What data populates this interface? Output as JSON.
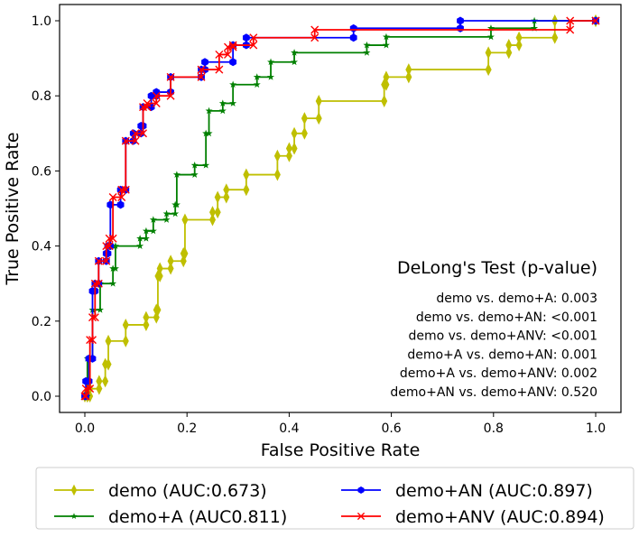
{
  "chart_data": {
    "type": "line",
    "xlabel": "False Positive Rate",
    "ylabel": "True Positive Rate",
    "xlim": [
      -0.05,
      1.05
    ],
    "ylim": [
      -0.05,
      1.04
    ],
    "xticks": [
      "0.0",
      "0.2",
      "0.4",
      "0.6",
      "0.8",
      "1.0"
    ],
    "yticks": [
      "0.0",
      "0.2",
      "0.4",
      "0.6",
      "0.8",
      "1.0"
    ],
    "grid": false,
    "legend_placement": "bottom-outside",
    "series": [
      {
        "name": "demo (AUC:0.673)",
        "color": "#bfbf00",
        "marker": "diamond",
        "points": [
          [
            0,
            0
          ],
          [
            0.005,
            0
          ],
          [
            0.01,
            0.02
          ],
          [
            0.028,
            0.04
          ],
          [
            0.04,
            0.085
          ],
          [
            0.046,
            0.147
          ],
          [
            0.08,
            0.19
          ],
          [
            0.12,
            0.21
          ],
          [
            0.14,
            0.23
          ],
          [
            0.143,
            0.32
          ],
          [
            0.147,
            0.34
          ],
          [
            0.168,
            0.36
          ],
          [
            0.193,
            0.38
          ],
          [
            0.196,
            0.47
          ],
          [
            0.25,
            0.49
          ],
          [
            0.26,
            0.53
          ],
          [
            0.277,
            0.55
          ],
          [
            0.316,
            0.59
          ],
          [
            0.377,
            0.64
          ],
          [
            0.4,
            0.66
          ],
          [
            0.41,
            0.7
          ],
          [
            0.43,
            0.74
          ],
          [
            0.458,
            0.786
          ],
          [
            0.586,
            0.83
          ],
          [
            0.59,
            0.85
          ],
          [
            0.634,
            0.87
          ],
          [
            0.79,
            0.915
          ],
          [
            0.83,
            0.935
          ],
          [
            0.85,
            0.955
          ],
          [
            0.92,
            1.0
          ],
          [
            1,
            1
          ]
        ]
      },
      {
        "name": "demo+A (AUC0.811)",
        "color": "#008000",
        "marker": "star",
        "points": [
          [
            0,
            0
          ],
          [
            0.005,
            0.1
          ],
          [
            0.015,
            0.23
          ],
          [
            0.03,
            0.3
          ],
          [
            0.055,
            0.34
          ],
          [
            0.06,
            0.4
          ],
          [
            0.108,
            0.42
          ],
          [
            0.12,
            0.44
          ],
          [
            0.134,
            0.47
          ],
          [
            0.16,
            0.486
          ],
          [
            0.177,
            0.51
          ],
          [
            0.18,
            0.59
          ],
          [
            0.215,
            0.615
          ],
          [
            0.237,
            0.7
          ],
          [
            0.243,
            0.76
          ],
          [
            0.27,
            0.78
          ],
          [
            0.29,
            0.83
          ],
          [
            0.337,
            0.85
          ],
          [
            0.364,
            0.89
          ],
          [
            0.41,
            0.915
          ],
          [
            0.552,
            0.935
          ],
          [
            0.59,
            0.957
          ],
          [
            0.795,
            0.98
          ],
          [
            0.88,
            1.0
          ],
          [
            1,
            1
          ]
        ]
      },
      {
        "name": "demo+AN (AUC:0.897)",
        "color": "#0000ff",
        "marker": "hexagon",
        "points": [
          [
            0,
            0
          ],
          [
            0.002,
            0.04
          ],
          [
            0.008,
            0.1
          ],
          [
            0.015,
            0.28
          ],
          [
            0.02,
            0.3
          ],
          [
            0.027,
            0.36
          ],
          [
            0.042,
            0.38
          ],
          [
            0.045,
            0.4
          ],
          [
            0.05,
            0.51
          ],
          [
            0.07,
            0.55
          ],
          [
            0.08,
            0.68
          ],
          [
            0.095,
            0.7
          ],
          [
            0.11,
            0.72
          ],
          [
            0.114,
            0.77
          ],
          [
            0.13,
            0.8
          ],
          [
            0.14,
            0.81
          ],
          [
            0.168,
            0.85
          ],
          [
            0.228,
            0.87
          ],
          [
            0.235,
            0.89
          ],
          [
            0.29,
            0.935
          ],
          [
            0.316,
            0.955
          ],
          [
            0.526,
            0.98
          ],
          [
            0.735,
            1.0
          ],
          [
            1,
            1
          ]
        ]
      },
      {
        "name": "demo+ANV (AUC:0.894)",
        "color": "#ff0000",
        "marker": "x",
        "points": [
          [
            0,
            0
          ],
          [
            0.002,
            0.02
          ],
          [
            0.01,
            0.15
          ],
          [
            0.015,
            0.21
          ],
          [
            0.02,
            0.3
          ],
          [
            0.027,
            0.36
          ],
          [
            0.042,
            0.4
          ],
          [
            0.048,
            0.42
          ],
          [
            0.055,
            0.53
          ],
          [
            0.072,
            0.55
          ],
          [
            0.08,
            0.68
          ],
          [
            0.099,
            0.7
          ],
          [
            0.114,
            0.77
          ],
          [
            0.122,
            0.78
          ],
          [
            0.14,
            0.8
          ],
          [
            0.168,
            0.85
          ],
          [
            0.228,
            0.87
          ],
          [
            0.263,
            0.91
          ],
          [
            0.28,
            0.93
          ],
          [
            0.29,
            0.935
          ],
          [
            0.33,
            0.955
          ],
          [
            0.45,
            0.976
          ],
          [
            0.95,
            1.0
          ],
          [
            1,
            1
          ]
        ]
      }
    ],
    "annotation": {
      "title": "DeLong's Test (p-value)",
      "lines": [
        "demo vs. demo+A: 0.003",
        "demo vs. demo+AN: <0.001",
        "demo vs. demo+ANV: <0.001",
        "demo+A vs. demo+AN: 0.001",
        "demo+A vs. demo+ANV: 0.002",
        "demo+AN vs. demo+ANV: 0.520"
      ]
    }
  }
}
